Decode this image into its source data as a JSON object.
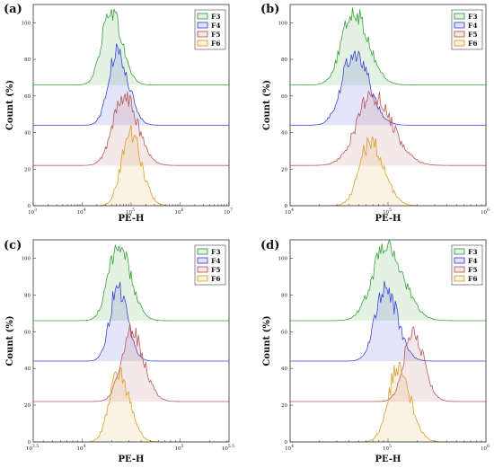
{
  "chart_data": [
    {
      "type": "area",
      "panel": "(a)",
      "xlabel": "PE-H",
      "ylabel": "Count (%)",
      "xscale": "log",
      "xlim": [
        3,
        7
      ],
      "xticks": [
        {
          "exp": 3,
          "label": "10"
        },
        {
          "exp": 4,
          "label": "10"
        },
        {
          "exp": 5,
          "label": "10"
        },
        {
          "exp": 6,
          "label": "10"
        },
        {
          "exp": 7,
          "label": "10"
        }
      ],
      "xtick_exponents": [
        "3",
        "4",
        "5",
        "6",
        "7"
      ],
      "ylim": [
        0,
        110
      ],
      "yticks": [
        "0",
        "20",
        "40",
        "60",
        "80",
        "100"
      ],
      "ytick_values": [
        0,
        20,
        40,
        60,
        80,
        100
      ],
      "legend": "top-right",
      "series": [
        {
          "name": "F3",
          "color": "#3aa33a",
          "baseline": 66,
          "peak_log": 4.58,
          "width": 0.18,
          "height": 41
        },
        {
          "name": "F4",
          "color": "#3f46d8",
          "baseline": 44,
          "peak_log": 4.72,
          "width": 0.18,
          "height": 40
        },
        {
          "name": "F5",
          "color": "#b85a5a",
          "baseline": 22,
          "peak_log": 4.85,
          "width": 0.22,
          "height": 38
        },
        {
          "name": "F6",
          "color": "#d9a030",
          "baseline": 0,
          "peak_log": 4.98,
          "width": 0.18,
          "height": 40
        }
      ]
    },
    {
      "type": "area",
      "panel": "(b)",
      "xlabel": "PE-H",
      "ylabel": "Count (%)",
      "xscale": "log",
      "xlim": [
        4,
        6
      ],
      "xticks": [
        {
          "exp": 4,
          "label": "10"
        },
        {
          "exp": 5,
          "label": "10"
        },
        {
          "exp": 6,
          "label": "10"
        }
      ],
      "xtick_exponents": [
        "4",
        "5",
        "6"
      ],
      "ylim": [
        0,
        110
      ],
      "yticks": [
        "0",
        "20",
        "40",
        "60",
        "80",
        "100"
      ],
      "ytick_values": [
        0,
        20,
        40,
        60,
        80,
        100
      ],
      "legend": "top-right",
      "series": [
        {
          "name": "F3",
          "color": "#3aa33a",
          "baseline": 66,
          "peak_log": 4.65,
          "width": 0.12,
          "height": 40
        },
        {
          "name": "F4",
          "color": "#3f46d8",
          "baseline": 44,
          "peak_log": 4.65,
          "width": 0.12,
          "height": 40
        },
        {
          "name": "F5",
          "color": "#b85a5a",
          "baseline": 22,
          "peak_log": 4.84,
          "width": 0.16,
          "height": 38
        },
        {
          "name": "F6",
          "color": "#d9a030",
          "baseline": 0,
          "peak_log": 4.82,
          "width": 0.11,
          "height": 35
        }
      ]
    },
    {
      "type": "area",
      "panel": "(c)",
      "xlabel": "PE-H",
      "ylabel": "Count (%)",
      "xscale": "log",
      "xlim": [
        3.5,
        5.5
      ],
      "xticks": [
        {
          "exp": 3.5,
          "label": "10"
        },
        {
          "exp": 4,
          "label": "10"
        },
        {
          "exp": 5,
          "label": "10"
        },
        {
          "exp": 5.5,
          "label": "10"
        }
      ],
      "xtick_exponents": [
        "3.5",
        "4",
        "5",
        "5.5"
      ],
      "ylim": [
        0,
        110
      ],
      "yticks": [
        "0",
        "20",
        "40",
        "60",
        "80",
        "100"
      ],
      "ytick_values": [
        0,
        20,
        40,
        60,
        80,
        100
      ],
      "legend": "top-right",
      "series": [
        {
          "name": "F3",
          "color": "#3aa33a",
          "baseline": 66,
          "peak_log": 4.37,
          "width": 0.1,
          "height": 41
        },
        {
          "name": "F4",
          "color": "#3f46d8",
          "baseline": 44,
          "peak_log": 4.36,
          "width": 0.08,
          "height": 40
        },
        {
          "name": "F5",
          "color": "#b85a5a",
          "baseline": 22,
          "peak_log": 4.5,
          "width": 0.1,
          "height": 39
        },
        {
          "name": "F6",
          "color": "#d9a030",
          "baseline": 0,
          "peak_log": 4.37,
          "width": 0.09,
          "height": 38
        }
      ]
    },
    {
      "type": "area",
      "panel": "(d)",
      "xlabel": "PE-H",
      "ylabel": "Count (%)",
      "xscale": "log",
      "xlim": [
        4,
        6
      ],
      "xticks": [
        {
          "exp": 4,
          "label": "10"
        },
        {
          "exp": 5,
          "label": "10"
        },
        {
          "exp": 6,
          "label": "10"
        }
      ],
      "xtick_exponents": [
        "4",
        "5",
        "6"
      ],
      "ylim": [
        0,
        110
      ],
      "yticks": [
        "0",
        "20",
        "40",
        "60",
        "80",
        "100"
      ],
      "ytick_values": [
        0,
        20,
        40,
        60,
        80,
        100
      ],
      "legend": "top-right",
      "series": [
        {
          "name": "F3",
          "color": "#3aa33a",
          "baseline": 66,
          "peak_log": 4.98,
          "width": 0.14,
          "height": 41
        },
        {
          "name": "F4",
          "color": "#3f46d8",
          "baseline": 44,
          "peak_log": 4.97,
          "width": 0.1,
          "height": 40
        },
        {
          "name": "F5",
          "color": "#b85a5a",
          "baseline": 22,
          "peak_log": 5.25,
          "width": 0.09,
          "height": 39
        },
        {
          "name": "F6",
          "color": "#d9a030",
          "baseline": 0,
          "peak_log": 5.1,
          "width": 0.1,
          "height": 40
        }
      ]
    }
  ]
}
